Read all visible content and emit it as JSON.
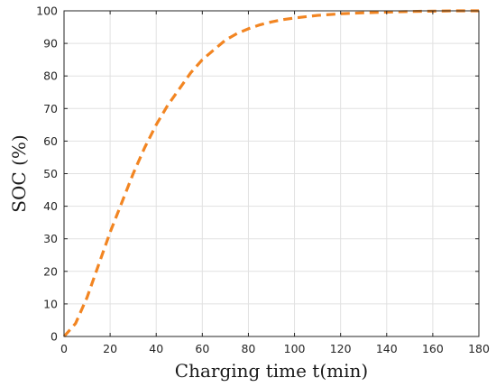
{
  "chart_data": {
    "type": "line",
    "title": "",
    "xlabel": "Charging time t(min)",
    "ylabel": "SOC (%)",
    "xlim": [
      0,
      180
    ],
    "ylim": [
      0,
      100
    ],
    "xticks": [
      0,
      20,
      40,
      60,
      80,
      100,
      120,
      140,
      160,
      180
    ],
    "yticks": [
      0,
      10,
      20,
      30,
      40,
      50,
      60,
      70,
      80,
      90,
      100
    ],
    "grid": true,
    "series": [
      {
        "line_style": "dashed",
        "color": "#F28522",
        "x": [
          0,
          5,
          10,
          15,
          20,
          25,
          30,
          35,
          40,
          45,
          50,
          55,
          60,
          65,
          70,
          75,
          80,
          85,
          90,
          95,
          100,
          110,
          120,
          130,
          140,
          150,
          160,
          170,
          180
        ],
        "y": [
          0,
          4,
          12,
          22,
          32,
          41,
          50,
          58,
          65,
          71,
          76,
          81,
          85,
          88,
          91,
          93,
          94.5,
          95.7,
          96.6,
          97.3,
          97.8,
          98.6,
          99.1,
          99.4,
          99.6,
          99.8,
          99.9,
          100,
          100
        ]
      }
    ]
  }
}
